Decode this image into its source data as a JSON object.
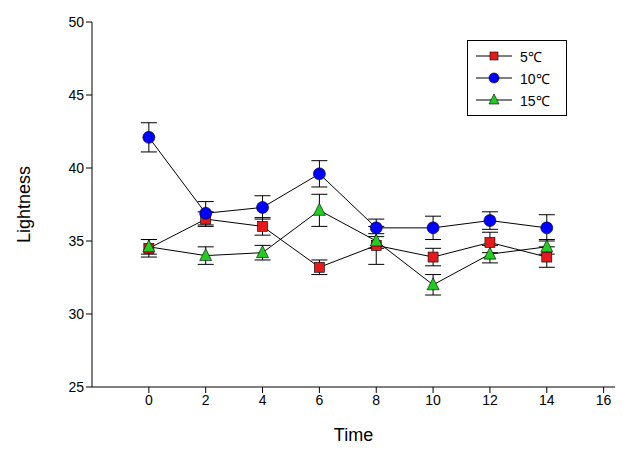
{
  "chart_data": {
    "type": "line",
    "x_label": "Time",
    "y_label": "Lightness",
    "x": [
      0,
      2,
      4,
      6,
      8,
      10,
      12,
      14
    ],
    "xlim": [
      -2,
      16.4
    ],
    "xticks": [
      0,
      2,
      4,
      6,
      8,
      10,
      12,
      14,
      16
    ],
    "ylim": [
      25,
      50
    ],
    "yticks": [
      25,
      30,
      35,
      40,
      45,
      50
    ],
    "grid": false,
    "legend": "upper right",
    "series": [
      {
        "name": "5℃",
        "color": "#e41a1c",
        "marker": "square",
        "values": [
          34.5,
          36.5,
          36.0,
          33.2,
          34.7,
          33.9,
          34.9,
          33.9
        ],
        "errors": [
          0.6,
          0.5,
          0.6,
          0.5,
          1.3,
          0.6,
          0.7,
          0.7
        ]
      },
      {
        "name": "10℃",
        "color": "#0000ff",
        "marker": "circle",
        "values": [
          42.1,
          36.9,
          37.3,
          39.6,
          35.9,
          35.9,
          36.4,
          35.9
        ],
        "errors": [
          1.0,
          0.8,
          0.8,
          0.9,
          0.6,
          0.8,
          0.6,
          0.9
        ]
      },
      {
        "name": "15℃",
        "color": "#22cc22",
        "marker": "triangle",
        "values": [
          34.6,
          34.0,
          34.2,
          37.1,
          35.0,
          32.0,
          34.1,
          34.6
        ],
        "errors": [
          0.5,
          0.6,
          0.5,
          1.1,
          0.5,
          0.7,
          0.6,
          0.5
        ]
      }
    ]
  }
}
